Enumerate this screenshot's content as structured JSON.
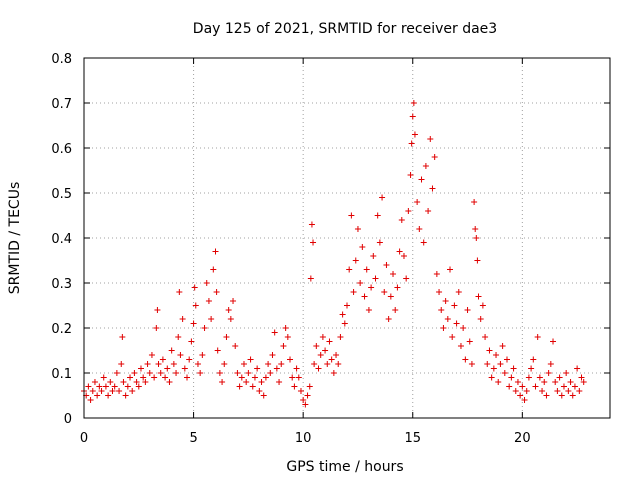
{
  "chart_data": {
    "type": "scatter",
    "title": "Day 125 of 2021, SRMTID for receiver dae3",
    "xlabel": "GPS time / hours",
    "ylabel": "SRMTID / TECUs",
    "xlim": [
      0,
      24
    ],
    "ylim": [
      0,
      0.8
    ],
    "xticks": [
      0,
      5,
      10,
      15,
      20
    ],
    "yticks": [
      0,
      0.1,
      0.2,
      0.3,
      0.4,
      0.5,
      0.6,
      0.7,
      0.8
    ],
    "grid": true,
    "marker": "plus",
    "color": "#e00000",
    "series": [
      {
        "name": "SRMTID",
        "points": [
          [
            0.0,
            0.06
          ],
          [
            0.1,
            0.05
          ],
          [
            0.2,
            0.07
          ],
          [
            0.3,
            0.04
          ],
          [
            0.4,
            0.06
          ],
          [
            0.5,
            0.08
          ],
          [
            0.6,
            0.05
          ],
          [
            0.7,
            0.07
          ],
          [
            0.8,
            0.06
          ],
          [
            0.9,
            0.09
          ],
          [
            1.0,
            0.07
          ],
          [
            1.1,
            0.05
          ],
          [
            1.2,
            0.08
          ],
          [
            1.3,
            0.06
          ],
          [
            1.4,
            0.07
          ],
          [
            1.5,
            0.1
          ],
          [
            1.6,
            0.06
          ],
          [
            1.7,
            0.12
          ],
          [
            1.75,
            0.18
          ],
          [
            1.8,
            0.08
          ],
          [
            1.9,
            0.05
          ],
          [
            2.0,
            0.07
          ],
          [
            2.1,
            0.09
          ],
          [
            2.2,
            0.06
          ],
          [
            2.3,
            0.1
          ],
          [
            2.4,
            0.08
          ],
          [
            2.5,
            0.07
          ],
          [
            2.6,
            0.11
          ],
          [
            2.7,
            0.09
          ],
          [
            2.8,
            0.08
          ],
          [
            2.9,
            0.12
          ],
          [
            3.0,
            0.1
          ],
          [
            3.1,
            0.14
          ],
          [
            3.2,
            0.09
          ],
          [
            3.3,
            0.2
          ],
          [
            3.35,
            0.24
          ],
          [
            3.4,
            0.12
          ],
          [
            3.5,
            0.1
          ],
          [
            3.6,
            0.13
          ],
          [
            3.7,
            0.09
          ],
          [
            3.8,
            0.11
          ],
          [
            3.9,
            0.08
          ],
          [
            4.0,
            0.15
          ],
          [
            4.1,
            0.12
          ],
          [
            4.2,
            0.1
          ],
          [
            4.3,
            0.18
          ],
          [
            4.35,
            0.28
          ],
          [
            4.4,
            0.14
          ],
          [
            4.5,
            0.22
          ],
          [
            4.6,
            0.11
          ],
          [
            4.7,
            0.09
          ],
          [
            4.8,
            0.13
          ],
          [
            4.9,
            0.17
          ],
          [
            5.0,
            0.21
          ],
          [
            5.05,
            0.29
          ],
          [
            5.1,
            0.25
          ],
          [
            5.2,
            0.12
          ],
          [
            5.3,
            0.1
          ],
          [
            5.4,
            0.14
          ],
          [
            5.5,
            0.2
          ],
          [
            5.6,
            0.3
          ],
          [
            5.7,
            0.26
          ],
          [
            5.8,
            0.22
          ],
          [
            5.9,
            0.33
          ],
          [
            6.0,
            0.37
          ],
          [
            6.05,
            0.28
          ],
          [
            6.1,
            0.15
          ],
          [
            6.2,
            0.1
          ],
          [
            6.3,
            0.08
          ],
          [
            6.4,
            0.12
          ],
          [
            6.5,
            0.18
          ],
          [
            6.6,
            0.24
          ],
          [
            6.7,
            0.22
          ],
          [
            6.8,
            0.26
          ],
          [
            6.9,
            0.16
          ],
          [
            7.0,
            0.1
          ],
          [
            7.1,
            0.07
          ],
          [
            7.2,
            0.09
          ],
          [
            7.3,
            0.12
          ],
          [
            7.4,
            0.08
          ],
          [
            7.5,
            0.1
          ],
          [
            7.6,
            0.13
          ],
          [
            7.7,
            0.07
          ],
          [
            7.8,
            0.09
          ],
          [
            7.9,
            0.11
          ],
          [
            8.0,
            0.06
          ],
          [
            8.1,
            0.08
          ],
          [
            8.2,
            0.05
          ],
          [
            8.3,
            0.09
          ],
          [
            8.4,
            0.12
          ],
          [
            8.5,
            0.1
          ],
          [
            8.6,
            0.14
          ],
          [
            8.7,
            0.19
          ],
          [
            8.8,
            0.11
          ],
          [
            8.9,
            0.08
          ],
          [
            9.0,
            0.12
          ],
          [
            9.1,
            0.16
          ],
          [
            9.2,
            0.2
          ],
          [
            9.3,
            0.18
          ],
          [
            9.4,
            0.13
          ],
          [
            9.5,
            0.09
          ],
          [
            9.6,
            0.07
          ],
          [
            9.7,
            0.11
          ],
          [
            9.8,
            0.09
          ],
          [
            9.9,
            0.06
          ],
          [
            10.0,
            0.04
          ],
          [
            10.1,
            0.03
          ],
          [
            10.2,
            0.05
          ],
          [
            10.3,
            0.07
          ],
          [
            10.35,
            0.31
          ],
          [
            10.4,
            0.43
          ],
          [
            10.45,
            0.39
          ],
          [
            10.5,
            0.12
          ],
          [
            10.6,
            0.16
          ],
          [
            10.7,
            0.11
          ],
          [
            10.8,
            0.14
          ],
          [
            10.9,
            0.18
          ],
          [
            11.0,
            0.15
          ],
          [
            11.1,
            0.12
          ],
          [
            11.2,
            0.17
          ],
          [
            11.3,
            0.13
          ],
          [
            11.4,
            0.1
          ],
          [
            11.5,
            0.14
          ],
          [
            11.6,
            0.12
          ],
          [
            11.7,
            0.18
          ],
          [
            11.8,
            0.23
          ],
          [
            11.9,
            0.21
          ],
          [
            12.0,
            0.25
          ],
          [
            12.1,
            0.33
          ],
          [
            12.2,
            0.45
          ],
          [
            12.3,
            0.28
          ],
          [
            12.4,
            0.35
          ],
          [
            12.5,
            0.42
          ],
          [
            12.6,
            0.3
          ],
          [
            12.7,
            0.38
          ],
          [
            12.8,
            0.27
          ],
          [
            12.9,
            0.33
          ],
          [
            13.0,
            0.24
          ],
          [
            13.1,
            0.29
          ],
          [
            13.2,
            0.36
          ],
          [
            13.3,
            0.31
          ],
          [
            13.4,
            0.45
          ],
          [
            13.5,
            0.39
          ],
          [
            13.6,
            0.49
          ],
          [
            13.7,
            0.28
          ],
          [
            13.8,
            0.34
          ],
          [
            13.9,
            0.22
          ],
          [
            14.0,
            0.27
          ],
          [
            14.1,
            0.32
          ],
          [
            14.2,
            0.24
          ],
          [
            14.3,
            0.29
          ],
          [
            14.4,
            0.37
          ],
          [
            14.5,
            0.44
          ],
          [
            14.6,
            0.36
          ],
          [
            14.7,
            0.31
          ],
          [
            14.8,
            0.46
          ],
          [
            14.9,
            0.54
          ],
          [
            14.95,
            0.61
          ],
          [
            15.0,
            0.67
          ],
          [
            15.05,
            0.7
          ],
          [
            15.1,
            0.63
          ],
          [
            15.2,
            0.48
          ],
          [
            15.3,
            0.42
          ],
          [
            15.4,
            0.53
          ],
          [
            15.5,
            0.39
          ],
          [
            15.6,
            0.56
          ],
          [
            15.7,
            0.46
          ],
          [
            15.8,
            0.62
          ],
          [
            15.9,
            0.51
          ],
          [
            16.0,
            0.58
          ],
          [
            16.1,
            0.32
          ],
          [
            16.2,
            0.28
          ],
          [
            16.3,
            0.24
          ],
          [
            16.4,
            0.2
          ],
          [
            16.5,
            0.26
          ],
          [
            16.6,
            0.22
          ],
          [
            16.7,
            0.33
          ],
          [
            16.8,
            0.18
          ],
          [
            16.9,
            0.25
          ],
          [
            17.0,
            0.21
          ],
          [
            17.1,
            0.28
          ],
          [
            17.2,
            0.16
          ],
          [
            17.3,
            0.2
          ],
          [
            17.4,
            0.13
          ],
          [
            17.5,
            0.24
          ],
          [
            17.6,
            0.17
          ],
          [
            17.7,
            0.12
          ],
          [
            17.8,
            0.48
          ],
          [
            17.85,
            0.42
          ],
          [
            17.9,
            0.4
          ],
          [
            17.95,
            0.35
          ],
          [
            18.0,
            0.27
          ],
          [
            18.1,
            0.22
          ],
          [
            18.2,
            0.25
          ],
          [
            18.3,
            0.18
          ],
          [
            18.4,
            0.12
          ],
          [
            18.5,
            0.15
          ],
          [
            18.6,
            0.09
          ],
          [
            18.7,
            0.11
          ],
          [
            18.8,
            0.14
          ],
          [
            18.9,
            0.08
          ],
          [
            19.0,
            0.12
          ],
          [
            19.1,
            0.16
          ],
          [
            19.2,
            0.1
          ],
          [
            19.3,
            0.13
          ],
          [
            19.4,
            0.07
          ],
          [
            19.5,
            0.09
          ],
          [
            19.6,
            0.11
          ],
          [
            19.7,
            0.06
          ],
          [
            19.8,
            0.08
          ],
          [
            19.9,
            0.05
          ],
          [
            20.0,
            0.07
          ],
          [
            20.1,
            0.04
          ],
          [
            20.2,
            0.06
          ],
          [
            20.3,
            0.09
          ],
          [
            20.4,
            0.11
          ],
          [
            20.5,
            0.13
          ],
          [
            20.6,
            0.07
          ],
          [
            20.7,
            0.18
          ],
          [
            20.8,
            0.09
          ],
          [
            20.9,
            0.06
          ],
          [
            21.0,
            0.08
          ],
          [
            21.1,
            0.05
          ],
          [
            21.2,
            0.1
          ],
          [
            21.3,
            0.12
          ],
          [
            21.4,
            0.17
          ],
          [
            21.5,
            0.08
          ],
          [
            21.6,
            0.06
          ],
          [
            21.7,
            0.09
          ],
          [
            21.8,
            0.05
          ],
          [
            21.9,
            0.07
          ],
          [
            22.0,
            0.1
          ],
          [
            22.1,
            0.06
          ],
          [
            22.2,
            0.08
          ],
          [
            22.3,
            0.05
          ],
          [
            22.4,
            0.07
          ],
          [
            22.5,
            0.11
          ],
          [
            22.6,
            0.06
          ],
          [
            22.7,
            0.09
          ],
          [
            22.8,
            0.08
          ]
        ]
      }
    ]
  }
}
